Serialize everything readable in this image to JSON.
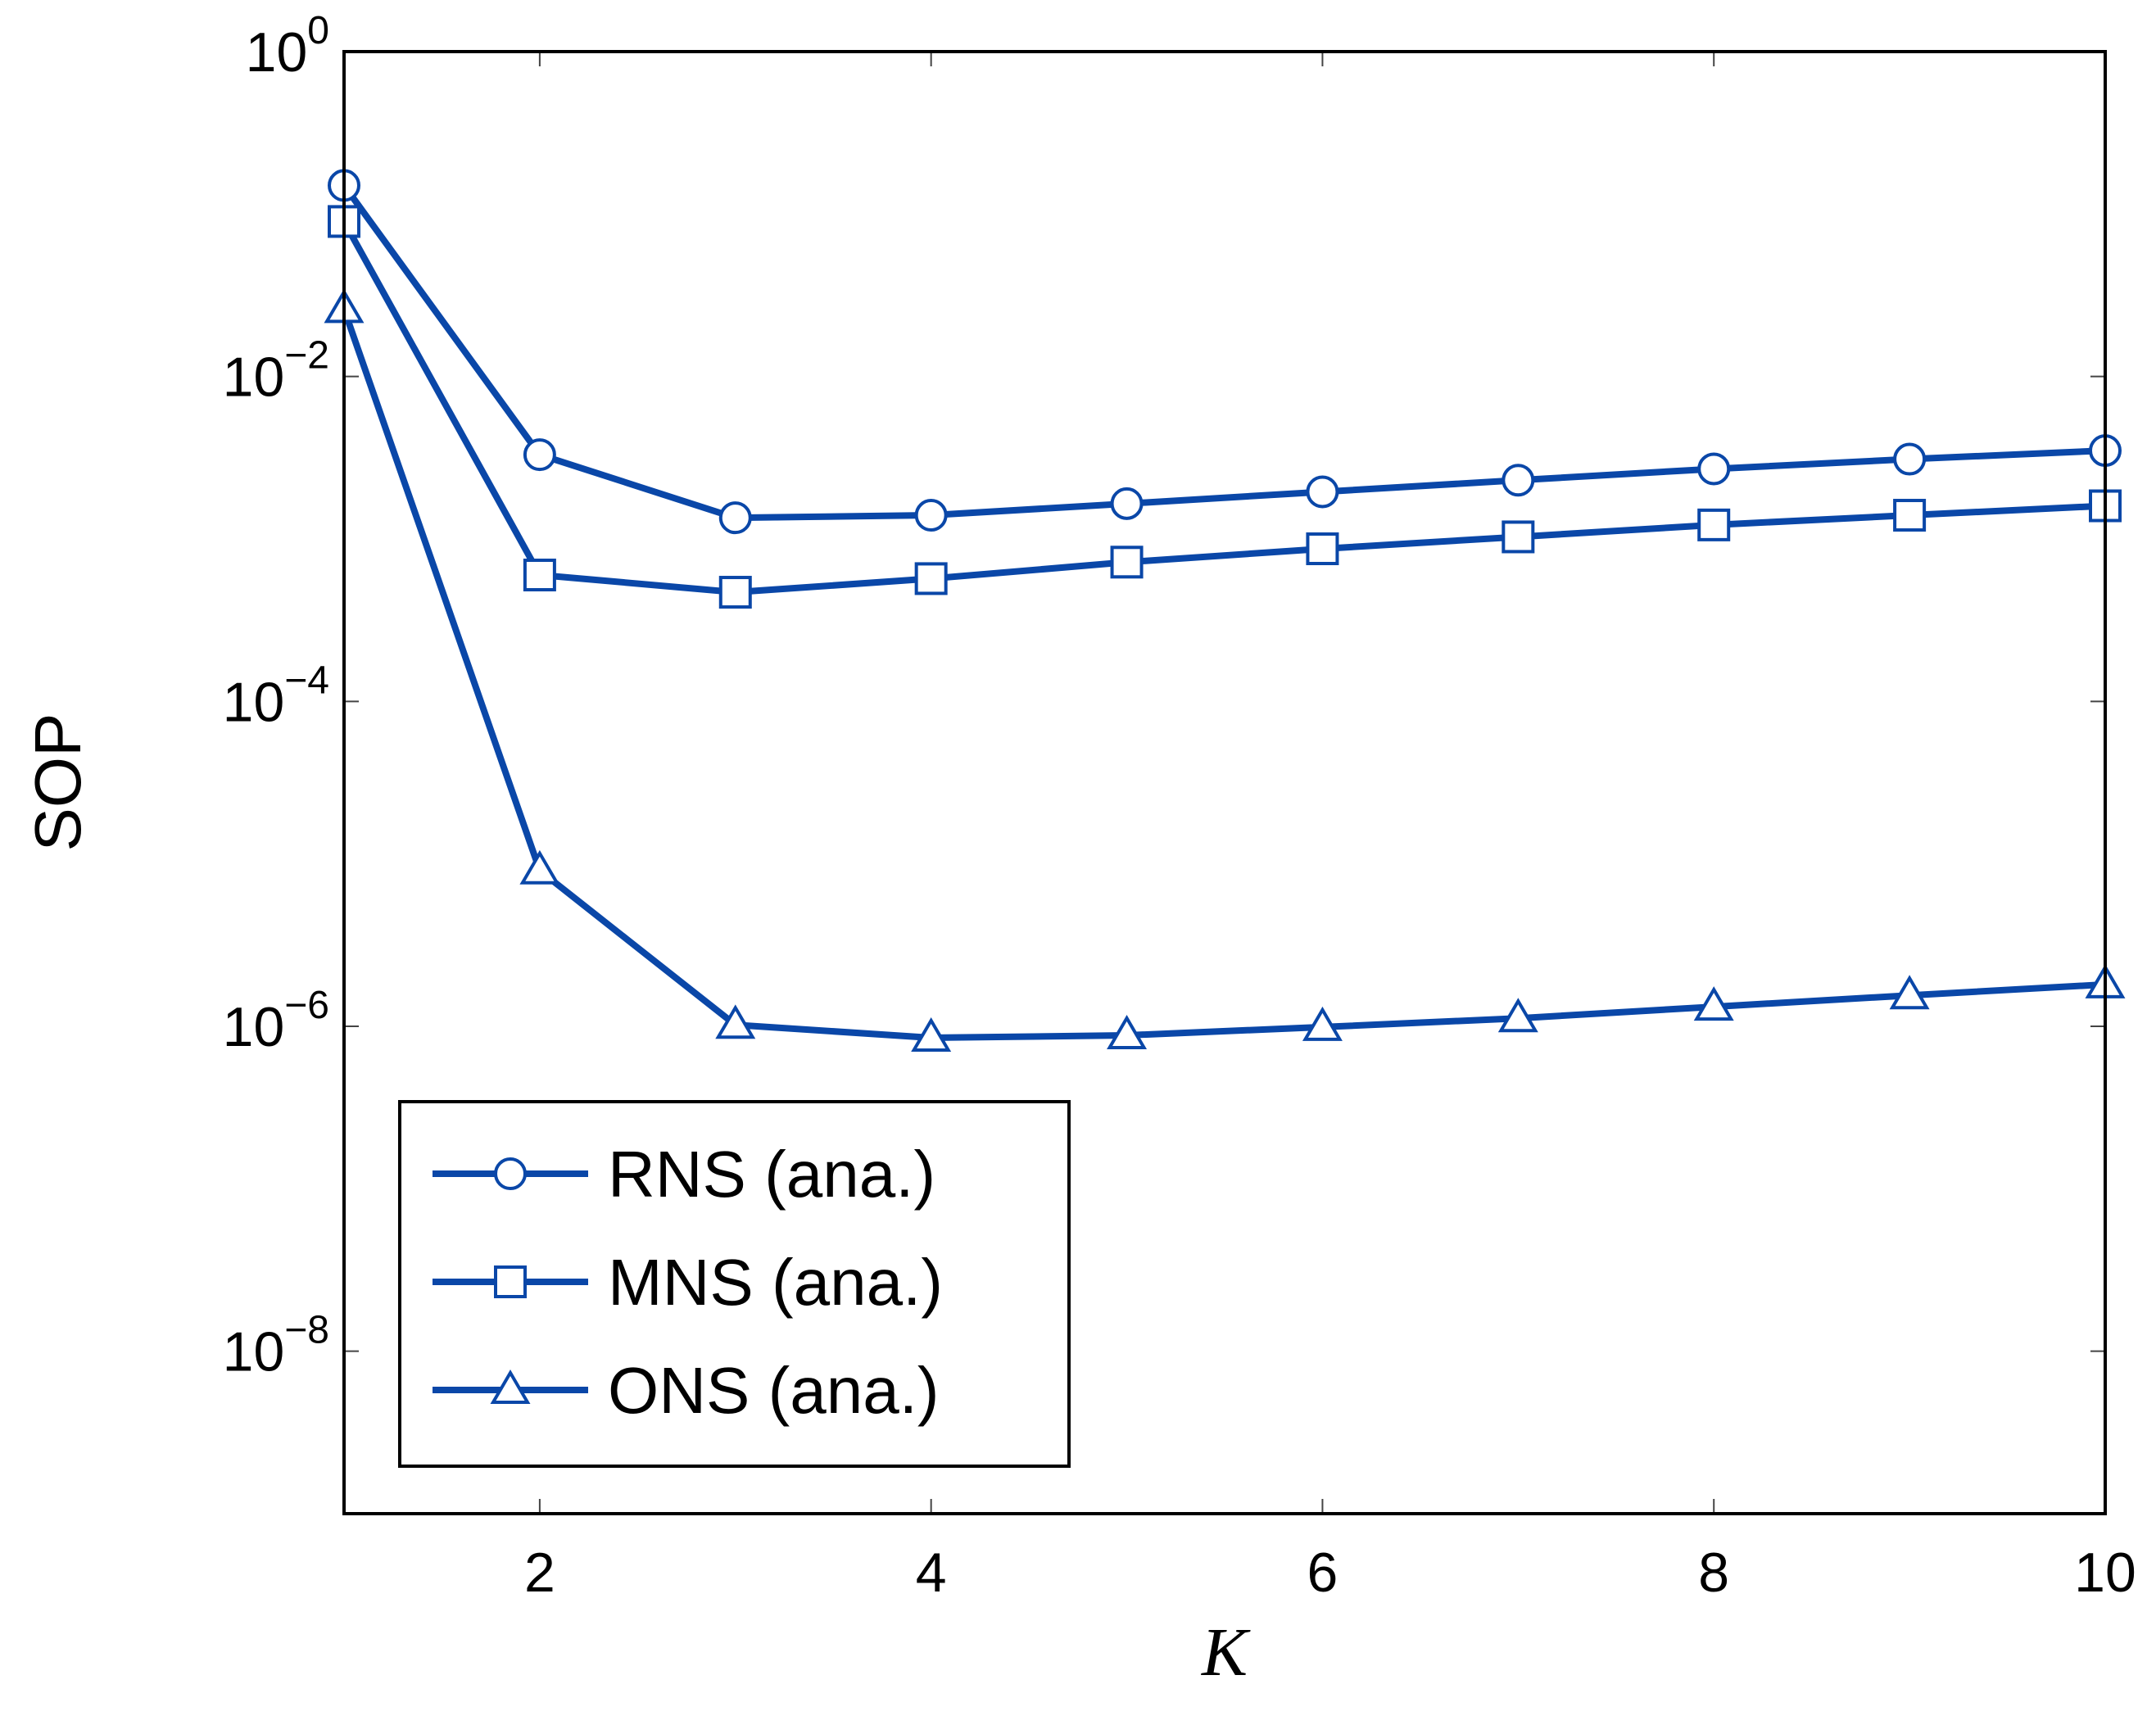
{
  "chart_data": {
    "type": "line",
    "title": "",
    "xlabel": "K",
    "ylabel": "SOP",
    "yscale": "log",
    "xlim": [
      1,
      10
    ],
    "ylim": [
      1e-09,
      1
    ],
    "x_ticks": [
      2,
      4,
      6,
      8,
      10
    ],
    "y_ticks": [
      {
        "base": "10",
        "exp": "0",
        "value": 1
      },
      {
        "base": "10",
        "exp": "−2",
        "value": 0.01
      },
      {
        "base": "10",
        "exp": "−4",
        "value": 0.0001
      },
      {
        "base": "10",
        "exp": "−6",
        "value": 1e-06
      },
      {
        "base": "10",
        "exp": "−8",
        "value": 1e-08
      }
    ],
    "grid": false,
    "legend_position": "bottom-left",
    "x": [
      1,
      2,
      3,
      4,
      5,
      6,
      7,
      8,
      9,
      10
    ],
    "series": [
      {
        "name": "RNS (ana.)",
        "marker": "circle",
        "color": "#0a47a8",
        "values": [
          0.15,
          0.0033,
          0.00135,
          0.0014,
          0.00165,
          0.00195,
          0.0023,
          0.0027,
          0.0031,
          0.0035
        ]
      },
      {
        "name": "MNS (ana.)",
        "marker": "square",
        "color": "#0a47a8",
        "values": [
          0.09,
          0.0006,
          0.00047,
          0.00057,
          0.00072,
          0.00087,
          0.00103,
          0.00122,
          0.0014,
          0.0016
        ]
      },
      {
        "name": "ONS (ana.)",
        "marker": "triangle",
        "color": "#0a47a8",
        "values": [
          0.026,
          9.1e-06,
          1.02e-06,
          8.5e-07,
          8.8e-07,
          9.9e-07,
          1.12e-06,
          1.32e-06,
          1.55e-06,
          1.81e-06
        ]
      }
    ]
  }
}
